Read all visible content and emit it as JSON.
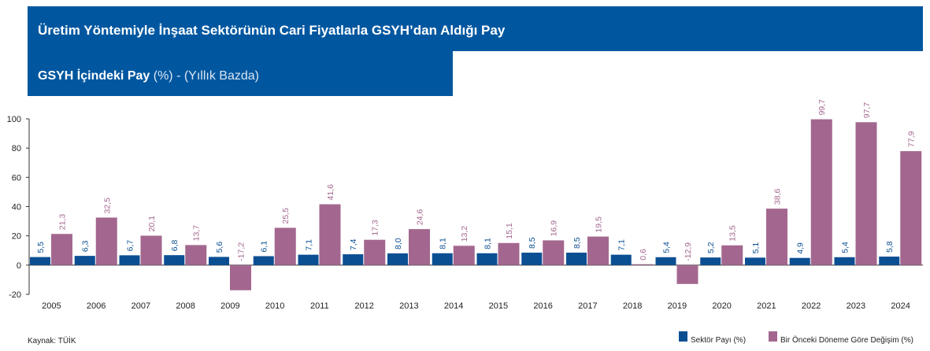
{
  "chart_data": {
    "type": "bar",
    "title": "Üretim Yöntemiyle İnşaat Sektörünün Cari Fiyatlarla GSYH’dan Aldığı Pay",
    "subtitle": [
      "GSYH İçindeki Pay",
      "(%) - (Yıllık Bazda)"
    ],
    "source": "Kaynak: TÜİK",
    "categories": [
      "2005",
      "2006",
      "2007",
      "2008",
      "2009",
      "2010",
      "2011",
      "2012",
      "2013",
      "2014",
      "2015",
      "2016",
      "2017",
      "2018",
      "2019",
      "2020",
      "2021",
      "2022",
      "2023",
      "2024"
    ],
    "series": [
      {
        "name": "Sektör Payı (%)",
        "color": "#0b4f93",
        "values": [
          5.5,
          6.3,
          6.7,
          6.8,
          5.6,
          6.1,
          7.1,
          7.4,
          8.0,
          8.1,
          8.1,
          8.5,
          8.5,
          7.1,
          5.4,
          5.2,
          5.1,
          4.9,
          5.4,
          5.8
        ],
        "value_labels": [
          "5,5",
          "6,3",
          "6,7",
          "6,8",
          "5,6",
          "6,1",
          "7,1",
          "7,4",
          "8,0",
          "8,1",
          "8,1",
          "8,5",
          "8,5",
          "7,1",
          "5,4",
          "5,2",
          "5,1",
          "4,9",
          "5,4",
          "5,8"
        ]
      },
      {
        "name": "Bir Önceki Döneme Göre Değişim (%)",
        "color": "#a3678f",
        "values": [
          21.3,
          32.5,
          20.1,
          13.7,
          -17.2,
          25.5,
          41.6,
          17.3,
          24.6,
          13.2,
          15.1,
          16.9,
          19.5,
          0.6,
          -12.9,
          13.5,
          38.6,
          99.7,
          97.7,
          77.9
        ],
        "value_labels": [
          "21,3",
          "32,5",
          "20,1",
          "13,7",
          "-17,2",
          "25,5",
          "41,6",
          "17,3",
          "24,6",
          "13,2",
          "15,1",
          "16,9",
          "19,5",
          "0,6",
          "-12,9",
          "13,5",
          "38,6",
          "99,7",
          "97,7",
          "77,9"
        ]
      }
    ],
    "ylim": [
      -20,
      100
    ],
    "yticks": [
      -20,
      0,
      20,
      40,
      60,
      80,
      100
    ],
    "legend": "bottom-right"
  }
}
